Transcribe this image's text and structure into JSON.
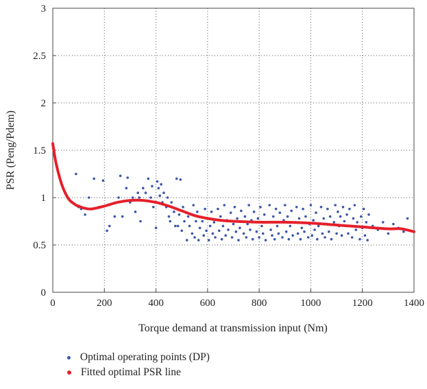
{
  "chart_data": {
    "type": "scatter",
    "title": "",
    "xlabel": "Torque demand at transmission input (Nm)",
    "ylabel": "PSR (Peng/Pdem)",
    "xlim": [
      0,
      1400
    ],
    "ylim": [
      0,
      3
    ],
    "xticks": [
      0,
      200,
      400,
      600,
      800,
      1000,
      1200,
      1400
    ],
    "yticks": [
      0,
      0.5,
      1,
      1.5,
      2,
      2.5,
      3
    ],
    "grid": true,
    "legend_placement": "below",
    "series": [
      {
        "name": "Optimal operating points (DP)",
        "kind": "scatter",
        "color": "#3b56a8",
        "points": [
          [
            90,
            1.25
          ],
          [
            100,
            0.9
          ],
          [
            110,
            0.88
          ],
          [
            125,
            0.82
          ],
          [
            140,
            1.0
          ],
          [
            160,
            1.2
          ],
          [
            180,
            0.9
          ],
          [
            195,
            1.18
          ],
          [
            210,
            0.65
          ],
          [
            220,
            0.7
          ],
          [
            240,
            0.8
          ],
          [
            255,
            1.0
          ],
          [
            262,
            1.23
          ],
          [
            270,
            0.8
          ],
          [
            285,
            1.1
          ],
          [
            290,
            1.21
          ],
          [
            300,
            0.95
          ],
          [
            310,
            1.0
          ],
          [
            320,
            0.85
          ],
          [
            330,
            1.05
          ],
          [
            335,
            1.0
          ],
          [
            340,
            0.75
          ],
          [
            350,
            1.1
          ],
          [
            360,
            1.05
          ],
          [
            370,
            1.2
          ],
          [
            380,
            1.0
          ],
          [
            385,
            1.12
          ],
          [
            390,
            0.9
          ],
          [
            395,
            0.95
          ],
          [
            400,
            0.68
          ],
          [
            405,
            1.17
          ],
          [
            410,
            1.1
          ],
          [
            415,
            1.02
          ],
          [
            420,
            1.14
          ],
          [
            425,
            0.95
          ],
          [
            430,
            1.05
          ],
          [
            440,
            0.9
          ],
          [
            445,
            1.0
          ],
          [
            450,
            0.8
          ],
          [
            455,
            0.75
          ],
          [
            460,
            0.95
          ],
          [
            470,
            0.85
          ],
          [
            475,
            0.7
          ],
          [
            480,
            1.2
          ],
          [
            485,
            0.7
          ],
          [
            490,
            0.82
          ],
          [
            495,
            1.19
          ],
          [
            500,
            0.65
          ],
          [
            505,
            0.9
          ],
          [
            510,
            0.75
          ],
          [
            520,
            0.55
          ],
          [
            525,
            0.8
          ],
          [
            530,
            0.7
          ],
          [
            540,
            0.62
          ],
          [
            545,
            0.92
          ],
          [
            550,
            0.58
          ],
          [
            555,
            0.75
          ],
          [
            560,
            0.85
          ],
          [
            565,
            0.55
          ],
          [
            570,
            0.68
          ],
          [
            580,
            0.75
          ],
          [
            585,
            0.6
          ],
          [
            590,
            0.88
          ],
          [
            595,
            0.65
          ],
          [
            600,
            0.78
          ],
          [
            605,
            0.55
          ],
          [
            610,
            0.7
          ],
          [
            615,
            0.85
          ],
          [
            620,
            0.62
          ],
          [
            625,
            0.74
          ],
          [
            630,
            0.58
          ],
          [
            640,
            0.88
          ],
          [
            645,
            0.65
          ],
          [
            650,
            0.8
          ],
          [
            655,
            0.56
          ],
          [
            660,
            0.7
          ],
          [
            665,
            0.92
          ],
          [
            670,
            0.6
          ],
          [
            675,
            0.76
          ],
          [
            680,
            0.66
          ],
          [
            690,
            0.84
          ],
          [
            695,
            0.58
          ],
          [
            700,
            0.72
          ],
          [
            705,
            0.9
          ],
          [
            710,
            0.64
          ],
          [
            715,
            0.78
          ],
          [
            720,
            0.55
          ],
          [
            725,
            0.68
          ],
          [
            730,
            0.86
          ],
          [
            740,
            0.62
          ],
          [
            745,
            0.8
          ],
          [
            750,
            0.58
          ],
          [
            755,
            0.72
          ],
          [
            760,
            0.92
          ],
          [
            765,
            0.66
          ],
          [
            770,
            0.76
          ],
          [
            775,
            0.56
          ],
          [
            780,
            0.85
          ],
          [
            790,
            0.64
          ],
          [
            795,
            0.78
          ],
          [
            800,
            0.58
          ],
          [
            805,
            0.9
          ],
          [
            810,
            0.7
          ],
          [
            815,
            0.62
          ],
          [
            820,
            0.82
          ],
          [
            825,
            0.55
          ],
          [
            830,
            0.74
          ],
          [
            840,
            0.92
          ],
          [
            845,
            0.66
          ],
          [
            850,
            0.6
          ],
          [
            855,
            0.8
          ],
          [
            860,
            0.56
          ],
          [
            865,
            0.88
          ],
          [
            870,
            0.7
          ],
          [
            875,
            0.62
          ],
          [
            880,
            0.84
          ],
          [
            890,
            0.58
          ],
          [
            895,
            0.76
          ],
          [
            900,
            0.92
          ],
          [
            905,
            0.64
          ],
          [
            910,
            0.8
          ],
          [
            915,
            0.56
          ],
          [
            920,
            0.7
          ],
          [
            925,
            0.86
          ],
          [
            930,
            0.6
          ],
          [
            940,
            0.74
          ],
          [
            945,
            0.9
          ],
          [
            950,
            0.62
          ],
          [
            955,
            0.78
          ],
          [
            960,
            0.56
          ],
          [
            965,
            0.68
          ],
          [
            970,
            0.88
          ],
          [
            975,
            0.64
          ],
          [
            980,
            0.8
          ],
          [
            990,
            0.58
          ],
          [
            995,
            0.72
          ],
          [
            1000,
            0.92
          ],
          [
            1005,
            0.6
          ],
          [
            1010,
            0.76
          ],
          [
            1015,
            0.66
          ],
          [
            1020,
            0.84
          ],
          [
            1025,
            0.56
          ],
          [
            1030,
            0.7
          ],
          [
            1040,
            0.9
          ],
          [
            1045,
            0.62
          ],
          [
            1050,
            0.78
          ],
          [
            1055,
            0.58
          ],
          [
            1060,
            0.72
          ],
          [
            1065,
            0.88
          ],
          [
            1070,
            0.64
          ],
          [
            1075,
            0.8
          ],
          [
            1080,
            0.56
          ],
          [
            1090,
            0.74
          ],
          [
            1095,
            0.92
          ],
          [
            1100,
            0.62
          ],
          [
            1105,
            0.85
          ],
          [
            1110,
            0.7
          ],
          [
            1115,
            0.8
          ],
          [
            1120,
            0.6
          ],
          [
            1125,
            0.9
          ],
          [
            1130,
            0.75
          ],
          [
            1140,
            0.82
          ],
          [
            1145,
            0.62
          ],
          [
            1150,
            0.88
          ],
          [
            1155,
            0.7
          ],
          [
            1160,
            0.58
          ],
          [
            1165,
            0.78
          ],
          [
            1170,
            0.92
          ],
          [
            1175,
            0.66
          ],
          [
            1180,
            0.74
          ],
          [
            1190,
            0.56
          ],
          [
            1195,
            0.8
          ],
          [
            1200,
            0.68
          ],
          [
            1205,
            0.88
          ],
          [
            1210,
            0.6
          ],
          [
            1215,
            0.74
          ],
          [
            1220,
            0.55
          ],
          [
            1225,
            0.82
          ],
          [
            1240,
            0.7
          ],
          [
            1260,
            0.66
          ],
          [
            1280,
            0.74
          ],
          [
            1300,
            0.62
          ],
          [
            1320,
            0.72
          ],
          [
            1340,
            0.68
          ],
          [
            1360,
            0.64
          ],
          [
            1375,
            0.78
          ]
        ]
      },
      {
        "name": "Fitted optimal PSR line",
        "kind": "line",
        "color": "#e5202a",
        "x": [
          0,
          10,
          20,
          30,
          40,
          50,
          60,
          70,
          80,
          90,
          100,
          120,
          150,
          200,
          250,
          300,
          350,
          400,
          450,
          500,
          550,
          600,
          650,
          700,
          800,
          900,
          1000,
          1100,
          1200,
          1300,
          1350,
          1400
        ],
        "y": [
          1.57,
          1.4,
          1.28,
          1.18,
          1.1,
          1.04,
          0.99,
          0.96,
          0.94,
          0.92,
          0.91,
          0.89,
          0.88,
          0.91,
          0.95,
          0.97,
          0.97,
          0.95,
          0.91,
          0.86,
          0.81,
          0.78,
          0.76,
          0.75,
          0.74,
          0.74,
          0.73,
          0.71,
          0.69,
          0.67,
          0.67,
          0.64
        ]
      }
    ]
  }
}
